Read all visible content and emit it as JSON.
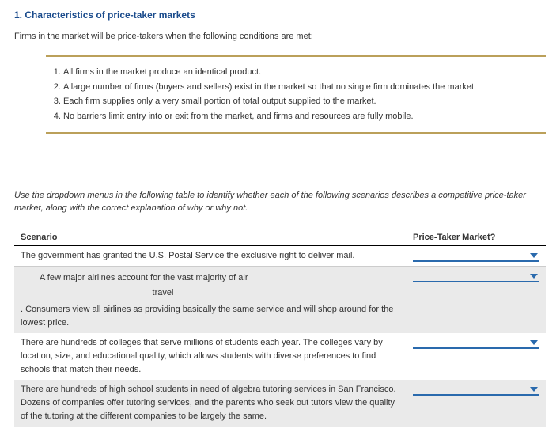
{
  "heading": "1. Characteristics of price-taker markets",
  "intro": "Firms in the market will be price-takers when the following conditions are met:",
  "rules": [
    "All firms in the market produce an identical product.",
    "A large number of firms (buyers and sellers) exist in the market so that no single firm dominates the market.",
    "Each firm supplies only a very small portion of total output supplied to the market.",
    "No barriers limit entry into or exit from the market, and firms and resources are fully mobile."
  ],
  "instructions": "Use the dropdown menus in the following table to identify whether each of the following scenarios describes a competitive price-taker market, along with the correct explanation of why or why not.",
  "table": {
    "col1": "Scenario",
    "col2": "Price-Taker Market?"
  },
  "scenarios": {
    "s1": {
      "main": "The government has granted the U.S. Postal Service the exclusive right to deliver mail."
    },
    "s2": {
      "line1": "A few major airlines account for the vast majority of air",
      "line2": "travel",
      "rest": ". Consumers view all airlines as providing basically the same service and will shop around for the lowest price."
    },
    "s3": {
      "main": "There are hundreds of colleges that serve millions of students each year. The colleges vary by location, size, and educational quality, which allows students with diverse preferences to find schools that match their needs."
    },
    "s4": {
      "main": "There are hundreds of high school students in need of algebra tutoring services in San Francisco. Dozens of companies offer tutoring services, and the parents who seek out tutors view the quality of the tutoring at the different companies to be largely the same."
    }
  }
}
